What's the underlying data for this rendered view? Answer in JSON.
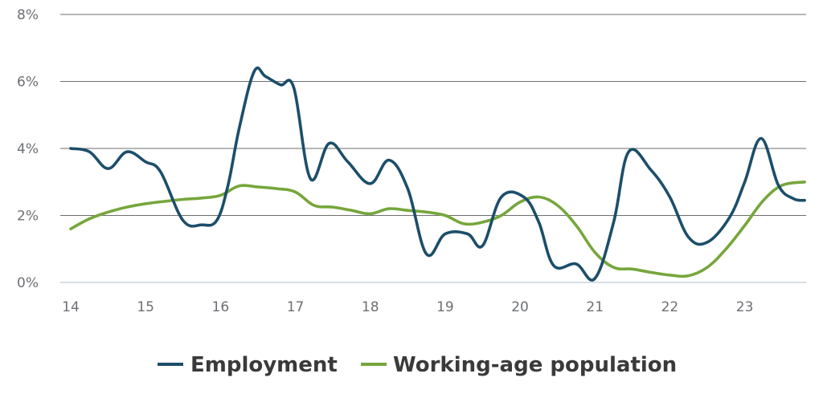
{
  "chart_data": {
    "type": "line",
    "title": "",
    "xlabel": "",
    "ylabel": "",
    "x_ticks": [
      14,
      15,
      16,
      17,
      18,
      19,
      20,
      21,
      22,
      23
    ],
    "x_tick_labels": [
      "14",
      "15",
      "16",
      "17",
      "18",
      "19",
      "20",
      "21",
      "22",
      "23"
    ],
    "xlim": [
      14,
      23.82
    ],
    "y_ticks": [
      0,
      2,
      4,
      6,
      8
    ],
    "y_tick_labels": [
      "0%",
      "2%",
      "4%",
      "6%",
      "8%"
    ],
    "ylim": [
      0,
      8
    ],
    "grid": "horizontal",
    "legend": "bottom-center",
    "series": [
      {
        "name": "Employment",
        "color": "#1c4e6a",
        "x": [
          14.0,
          14.25,
          14.5,
          14.75,
          15.0,
          15.2,
          15.5,
          15.75,
          15.95,
          16.1,
          16.25,
          16.45,
          16.6,
          16.8,
          16.98,
          17.2,
          17.45,
          17.7,
          18.0,
          18.25,
          18.5,
          18.75,
          19.0,
          19.3,
          19.5,
          19.75,
          20.05,
          20.25,
          20.45,
          20.75,
          21.0,
          21.25,
          21.45,
          21.75,
          22.0,
          22.25,
          22.5,
          22.8,
          23.0,
          23.22,
          23.45,
          23.65,
          23.8
        ],
        "y": [
          4.0,
          3.9,
          3.4,
          3.9,
          3.6,
          3.3,
          1.85,
          1.72,
          1.85,
          2.9,
          4.6,
          6.3,
          6.15,
          5.9,
          5.8,
          3.1,
          4.15,
          3.6,
          2.95,
          3.65,
          2.8,
          0.85,
          1.45,
          1.45,
          1.1,
          2.55,
          2.55,
          1.8,
          0.5,
          0.55,
          0.12,
          1.8,
          3.9,
          3.35,
          2.55,
          1.35,
          1.2,
          1.95,
          3.0,
          4.3,
          2.9,
          2.5,
          2.45
        ]
      },
      {
        "name": "Working-age population",
        "color": "#76a63c",
        "x": [
          14.0,
          14.25,
          14.5,
          14.75,
          15.0,
          15.25,
          15.5,
          15.75,
          16.0,
          16.25,
          16.5,
          16.75,
          17.0,
          17.25,
          17.5,
          17.75,
          18.0,
          18.25,
          18.5,
          18.75,
          19.0,
          19.25,
          19.5,
          19.75,
          20.0,
          20.25,
          20.5,
          20.75,
          21.0,
          21.25,
          21.5,
          21.75,
          22.0,
          22.25,
          22.5,
          22.75,
          23.0,
          23.25,
          23.5,
          23.8
        ],
        "y": [
          1.6,
          1.9,
          2.1,
          2.25,
          2.35,
          2.42,
          2.48,
          2.52,
          2.6,
          2.88,
          2.85,
          2.8,
          2.7,
          2.3,
          2.25,
          2.15,
          2.05,
          2.2,
          2.15,
          2.1,
          2.0,
          1.75,
          1.8,
          2.0,
          2.4,
          2.55,
          2.3,
          1.7,
          0.9,
          0.45,
          0.4,
          0.3,
          0.22,
          0.2,
          0.45,
          1.0,
          1.7,
          2.45,
          2.9,
          3.0
        ]
      }
    ]
  }
}
